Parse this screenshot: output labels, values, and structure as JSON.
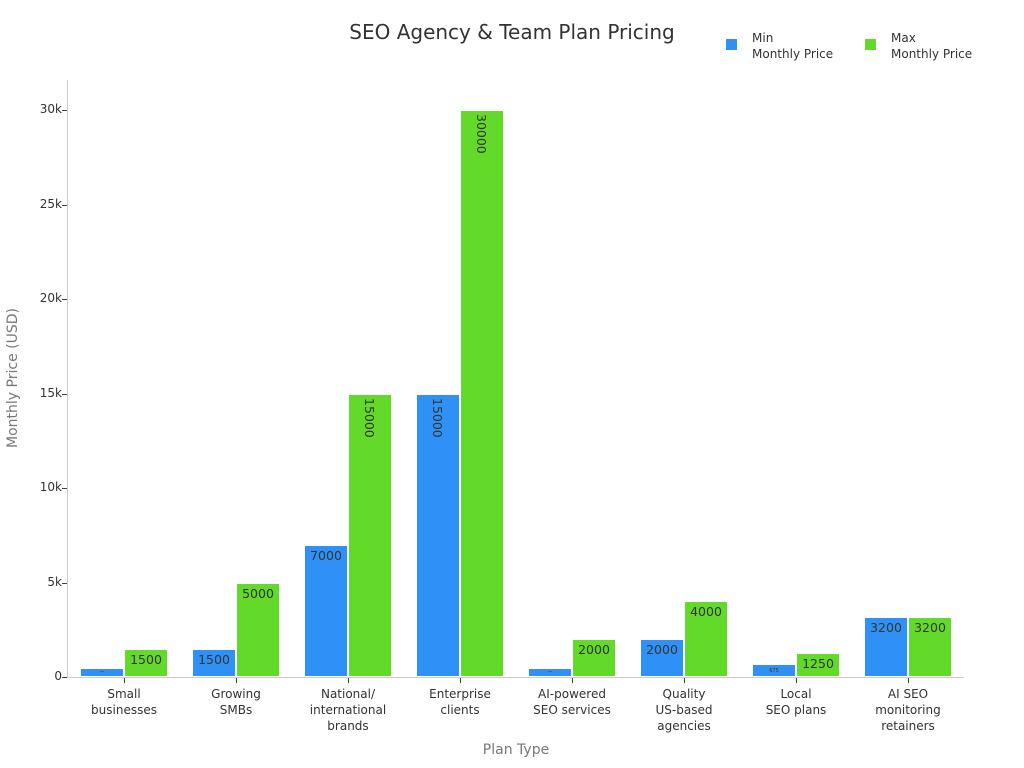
{
  "chart_data": {
    "type": "bar",
    "title": "SEO Agency & Team Plan Pricing",
    "xlabel": "Plan Type",
    "ylabel": "Monthly Price (USD)",
    "ylim": [
      0,
      31500
    ],
    "yticks": [
      0,
      5000,
      10000,
      15000,
      20000,
      25000,
      30000
    ],
    "ytick_labels": [
      "0",
      "5k",
      "10k",
      "15k",
      "20k",
      "25k",
      "30k"
    ],
    "grid": false,
    "legend_position": "top-right",
    "categories": [
      "Small\nbusinesses",
      "Growing\nSMBs",
      "National/\ninternational\nbrands",
      "Enterprise\nclients",
      "AI-powered\nSEO services",
      "Quality\nUS-based\nagencies",
      "Local\nSEO plans",
      "AI SEO\nmonitoring\nretainers"
    ],
    "series": [
      {
        "name": "Min\nMonthly Price",
        "color": "#2f91f6",
        "values": [
          500,
          1500,
          7000,
          15000,
          500,
          2000,
          675,
          3200
        ]
      },
      {
        "name": "Max\nMonthly Price",
        "color": "#63d92a",
        "values": [
          1500,
          5000,
          15000,
          30000,
          2000,
          4000,
          1250,
          3200
        ]
      }
    ]
  }
}
